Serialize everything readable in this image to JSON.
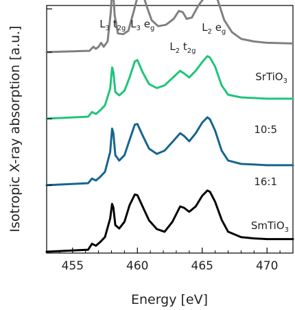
{
  "chart_data": {
    "type": "line",
    "xlabel": "Energy [eV]",
    "ylabel": "Isotropic X-ray absorption [a.u.]",
    "xlim": [
      453,
      472
    ],
    "xticks": [
      455,
      460,
      465,
      470
    ],
    "y_tick_labels_shown": false,
    "grid": false,
    "annotations": [
      {
        "main": "L",
        "sub1": "3",
        "rest": " t",
        "sub2": "2g",
        "x": 458.1
      },
      {
        "main": "L",
        "sub1": "3",
        "rest": " e",
        "sub2": "g",
        "x": 460.4
      },
      {
        "main": "L",
        "sub1": "2",
        "rest": " t",
        "sub2": "2g",
        "x": 463.5
      },
      {
        "main": "L",
        "sub1": "2",
        "rest": " e",
        "sub2": "g",
        "x": 465.9
      }
    ],
    "series": [
      {
        "name": "SrTiO3",
        "label_main": "SrTiO",
        "label_sub": "3",
        "color": "#808080",
        "offset": 3.0,
        "points": [
          [
            453.0,
            0.0
          ],
          [
            456.3,
            0.02
          ],
          [
            456.6,
            0.08
          ],
          [
            456.8,
            0.05
          ],
          [
            457.0,
            0.08
          ],
          [
            457.2,
            0.14
          ],
          [
            457.4,
            0.08
          ],
          [
            457.7,
            0.16
          ],
          [
            457.95,
            0.6
          ],
          [
            458.05,
            0.95
          ],
          [
            458.12,
            0.93
          ],
          [
            458.25,
            0.55
          ],
          [
            458.5,
            0.28
          ],
          [
            458.9,
            0.27
          ],
          [
            459.3,
            0.32
          ],
          [
            459.7,
            0.6
          ],
          [
            460.1,
            0.9
          ],
          [
            460.35,
            0.92
          ],
          [
            460.7,
            0.7
          ],
          [
            461.1,
            0.48
          ],
          [
            461.6,
            0.39
          ],
          [
            462.2,
            0.41
          ],
          [
            462.8,
            0.5
          ],
          [
            463.2,
            0.62
          ],
          [
            463.5,
            0.6
          ],
          [
            463.8,
            0.5
          ],
          [
            464.2,
            0.52
          ],
          [
            464.7,
            0.7
          ],
          [
            465.2,
            0.83
          ],
          [
            465.6,
            0.91
          ],
          [
            465.85,
            0.9
          ],
          [
            466.2,
            0.78
          ],
          [
            466.7,
            0.48
          ],
          [
            467.3,
            0.3
          ],
          [
            468.0,
            0.2
          ],
          [
            469.0,
            0.16
          ],
          [
            470.0,
            0.14
          ],
          [
            472.0,
            0.13
          ]
        ]
      },
      {
        "name": "10:5",
        "color": "#1fc47a",
        "offset": 2.0,
        "points": [
          [
            453.0,
            0.0
          ],
          [
            456.2,
            0.03
          ],
          [
            456.5,
            0.1
          ],
          [
            456.8,
            0.07
          ],
          [
            457.1,
            0.12
          ],
          [
            457.5,
            0.2
          ],
          [
            457.9,
            0.45
          ],
          [
            458.05,
            0.77
          ],
          [
            458.15,
            0.7
          ],
          [
            458.3,
            0.4
          ],
          [
            458.6,
            0.35
          ],
          [
            459.0,
            0.42
          ],
          [
            459.4,
            0.62
          ],
          [
            459.8,
            0.86
          ],
          [
            460.0,
            0.88
          ],
          [
            460.4,
            0.7
          ],
          [
            460.9,
            0.52
          ],
          [
            461.5,
            0.46
          ],
          [
            462.1,
            0.5
          ],
          [
            462.7,
            0.61
          ],
          [
            463.3,
            0.72
          ],
          [
            463.6,
            0.68
          ],
          [
            464.0,
            0.62
          ],
          [
            464.5,
            0.72
          ],
          [
            465.0,
            0.85
          ],
          [
            465.4,
            0.94
          ],
          [
            465.6,
            0.92
          ],
          [
            466.0,
            0.78
          ],
          [
            466.5,
            0.5
          ],
          [
            467.0,
            0.36
          ],
          [
            468.0,
            0.32
          ],
          [
            469.0,
            0.31
          ],
          [
            470.0,
            0.3
          ],
          [
            472.0,
            0.3
          ]
        ]
      },
      {
        "name": "16:1",
        "color": "#15658f",
        "offset": 1.0,
        "points": [
          [
            453.0,
            0.0
          ],
          [
            456.2,
            0.03
          ],
          [
            456.5,
            0.1
          ],
          [
            456.8,
            0.07
          ],
          [
            457.1,
            0.12
          ],
          [
            457.5,
            0.2
          ],
          [
            457.9,
            0.5
          ],
          [
            458.05,
            0.85
          ],
          [
            458.15,
            0.78
          ],
          [
            458.3,
            0.45
          ],
          [
            458.6,
            0.37
          ],
          [
            459.0,
            0.45
          ],
          [
            459.4,
            0.68
          ],
          [
            459.8,
            0.91
          ],
          [
            460.0,
            0.92
          ],
          [
            460.4,
            0.75
          ],
          [
            460.9,
            0.55
          ],
          [
            461.5,
            0.47
          ],
          [
            462.1,
            0.52
          ],
          [
            462.7,
            0.65
          ],
          [
            463.3,
            0.78
          ],
          [
            463.6,
            0.74
          ],
          [
            464.0,
            0.66
          ],
          [
            464.5,
            0.78
          ],
          [
            465.0,
            0.94
          ],
          [
            465.4,
            1.02
          ],
          [
            465.6,
            0.99
          ],
          [
            466.0,
            0.82
          ],
          [
            466.5,
            0.52
          ],
          [
            467.0,
            0.37
          ],
          [
            468.0,
            0.32
          ],
          [
            469.0,
            0.31
          ],
          [
            470.0,
            0.3
          ],
          [
            472.0,
            0.3
          ]
        ]
      },
      {
        "name": "SmTiO3",
        "label_main": "SmTiO",
        "label_sub": "3",
        "color": "#000000",
        "offset": 0.0,
        "points": [
          [
            453.0,
            0.0
          ],
          [
            456.2,
            0.03
          ],
          [
            456.5,
            0.12
          ],
          [
            456.8,
            0.09
          ],
          [
            457.1,
            0.14
          ],
          [
            457.5,
            0.22
          ],
          [
            457.9,
            0.5
          ],
          [
            458.05,
            0.72
          ],
          [
            458.15,
            0.66
          ],
          [
            458.3,
            0.4
          ],
          [
            458.6,
            0.35
          ],
          [
            459.0,
            0.45
          ],
          [
            459.4,
            0.7
          ],
          [
            459.8,
            0.86
          ],
          [
            460.0,
            0.85
          ],
          [
            460.4,
            0.68
          ],
          [
            460.9,
            0.47
          ],
          [
            461.5,
            0.34
          ],
          [
            462.1,
            0.3
          ],
          [
            462.7,
            0.45
          ],
          [
            463.3,
            0.68
          ],
          [
            463.6,
            0.66
          ],
          [
            464.0,
            0.6
          ],
          [
            464.5,
            0.68
          ],
          [
            465.0,
            0.84
          ],
          [
            465.4,
            0.92
          ],
          [
            465.6,
            0.9
          ],
          [
            466.0,
            0.75
          ],
          [
            466.5,
            0.48
          ],
          [
            467.0,
            0.3
          ],
          [
            468.0,
            0.22
          ],
          [
            469.0,
            0.2
          ],
          [
            470.0,
            0.19
          ],
          [
            472.0,
            0.19
          ]
        ]
      }
    ]
  }
}
